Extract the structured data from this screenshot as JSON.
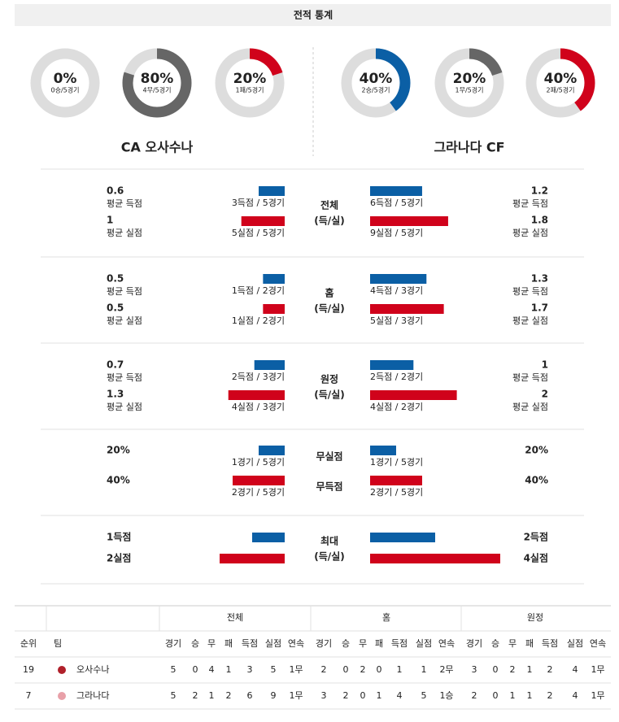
{
  "header": {
    "title": "전적 통계"
  },
  "teams": [
    {
      "name": "CA 오사수나",
      "donuts": [
        {
          "value": 0,
          "label": "0%",
          "sub": "0승/5경기",
          "color": "#0b5fa5"
        },
        {
          "value": 80,
          "label": "80%",
          "sub": "4무/5경기",
          "color": "#666666"
        },
        {
          "value": 20,
          "label": "20%",
          "sub": "1패/5경기",
          "color": "#d0021b"
        }
      ]
    },
    {
      "name": "그라나다 CF",
      "donuts": [
        {
          "value": 40,
          "label": "40%",
          "sub": "2승/5경기",
          "color": "#0b5fa5"
        },
        {
          "value": 20,
          "label": "20%",
          "sub": "1무/5경기",
          "color": "#666666"
        },
        {
          "value": 40,
          "label": "40%",
          "sub": "2패/5경기",
          "color": "#d0021b"
        }
      ]
    }
  ],
  "sections": [
    {
      "label": "전체",
      "sub": "(득/실)",
      "rows": [
        {
          "left": {
            "value": 0.6,
            "name": "평균 득점",
            "caption": "3득점 / 5경기"
          },
          "right": {
            "value": 1.2,
            "name": "평균 득점",
            "caption": "6득점 / 5경기"
          }
        },
        {
          "left": {
            "value": 1,
            "name": "평균 실점",
            "caption": "5실점 / 5경기"
          },
          "right": {
            "value": 1.8,
            "name": "평균 실점",
            "caption": "9실점 / 5경기"
          }
        }
      ]
    },
    {
      "label": "홈",
      "sub": "(득/실)",
      "rows": [
        {
          "left": {
            "value": 0.5,
            "name": "평균 득점",
            "caption": "1득점 / 2경기"
          },
          "right": {
            "value": 1.3,
            "name": "평균 득점",
            "caption": "4득점 / 3경기"
          }
        },
        {
          "left": {
            "value": 0.5,
            "name": "평균 실점",
            "caption": "1실점 / 2경기"
          },
          "right": {
            "value": 1.7,
            "name": "평균 실점",
            "caption": "5실점 / 3경기"
          }
        }
      ]
    },
    {
      "label": "원정",
      "sub": "(득/실)",
      "rows": [
        {
          "left": {
            "value": 0.7,
            "name": "평균 득점",
            "caption": "2득점 / 3경기"
          },
          "right": {
            "value": 1,
            "name": "평균 득점",
            "caption": "2득점 / 2경기"
          }
        },
        {
          "left": {
            "value": 1.3,
            "name": "평균 실점",
            "caption": "4실점 / 3경기"
          },
          "right": {
            "value": 2,
            "name": "평균 실점",
            "caption": "4실점 / 2경기"
          }
        }
      ]
    },
    {
      "rows": [
        {
          "label": "무실점",
          "left": {
            "value": 20,
            "value_label": "20%",
            "caption": "1경기 / 5경기"
          },
          "right": {
            "value": 20,
            "value_label": "20%",
            "caption": "1경기 / 5경기"
          }
        },
        {
          "label": "무득점",
          "left": {
            "value": 40,
            "value_label": "40%",
            "caption": "2경기 / 5경기"
          },
          "right": {
            "value": 40,
            "value_label": "40%",
            "caption": "2경기 / 5경기"
          }
        }
      ]
    },
    {
      "label": "최대",
      "sub": "(득/실)",
      "rows": [
        {
          "left": {
            "value": 1,
            "value_label": "1득점"
          },
          "right": {
            "value": 2,
            "value_label": "2득점"
          }
        },
        {
          "left": {
            "value": 2,
            "value_label": "2실점"
          },
          "right": {
            "value": 4,
            "value_label": "4실점"
          }
        }
      ]
    }
  ],
  "table": {
    "groups": [
      "전체",
      "홈",
      "원정"
    ],
    "rank_header": "순위",
    "team_header": "팀",
    "columns": [
      "경기",
      "승",
      "무",
      "패",
      "득점",
      "실점",
      "연속"
    ],
    "rows": [
      {
        "rank": 19,
        "team": "오사수나",
        "cells": [
          [
            5,
            0,
            4,
            1,
            3,
            5,
            "1무"
          ],
          [
            2,
            0,
            2,
            0,
            1,
            1,
            "2무"
          ],
          [
            3,
            0,
            2,
            1,
            2,
            4,
            "1무"
          ]
        ]
      },
      {
        "rank": 7,
        "team": "그라나다",
        "cells": [
          [
            5,
            2,
            1,
            2,
            6,
            9,
            "1무"
          ],
          [
            3,
            2,
            0,
            1,
            4,
            5,
            "1승"
          ],
          [
            2,
            0,
            1,
            1,
            2,
            4,
            "1무"
          ]
        ]
      }
    ]
  }
}
